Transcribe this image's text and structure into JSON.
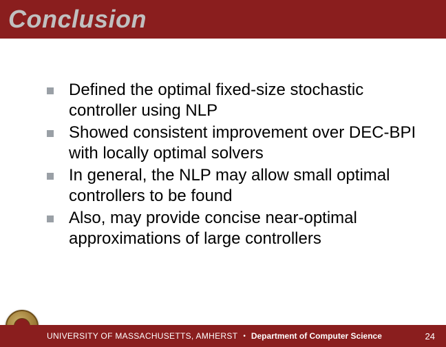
{
  "title": "Conclusion",
  "title_color": "#c0c0c0",
  "title_bg": "#8a1e1e",
  "bullets": [
    "Defined the optimal fixed-size stochastic controller using NLP",
    "Showed consistent improvement over DEC-BPI with locally optimal solvers",
    "In general, the NLP may allow small optimal controllers to be found",
    "Also, may provide concise near-optimal approximations of large controllers"
  ],
  "bullet_color": "#9aa0a6",
  "text_color": "#000000",
  "footer": {
    "university_part1": "U",
    "university_part2": "NIVERSITY OF ",
    "university_part3": "M",
    "university_part4": "ASSACHUSETTS, ",
    "university_part5": "A",
    "university_part6": "MHERST",
    "separator": "•",
    "department": "Department of Computer Science",
    "page_number": "24",
    "bg": "#8a1e1e",
    "text_color": "#ffffff"
  }
}
